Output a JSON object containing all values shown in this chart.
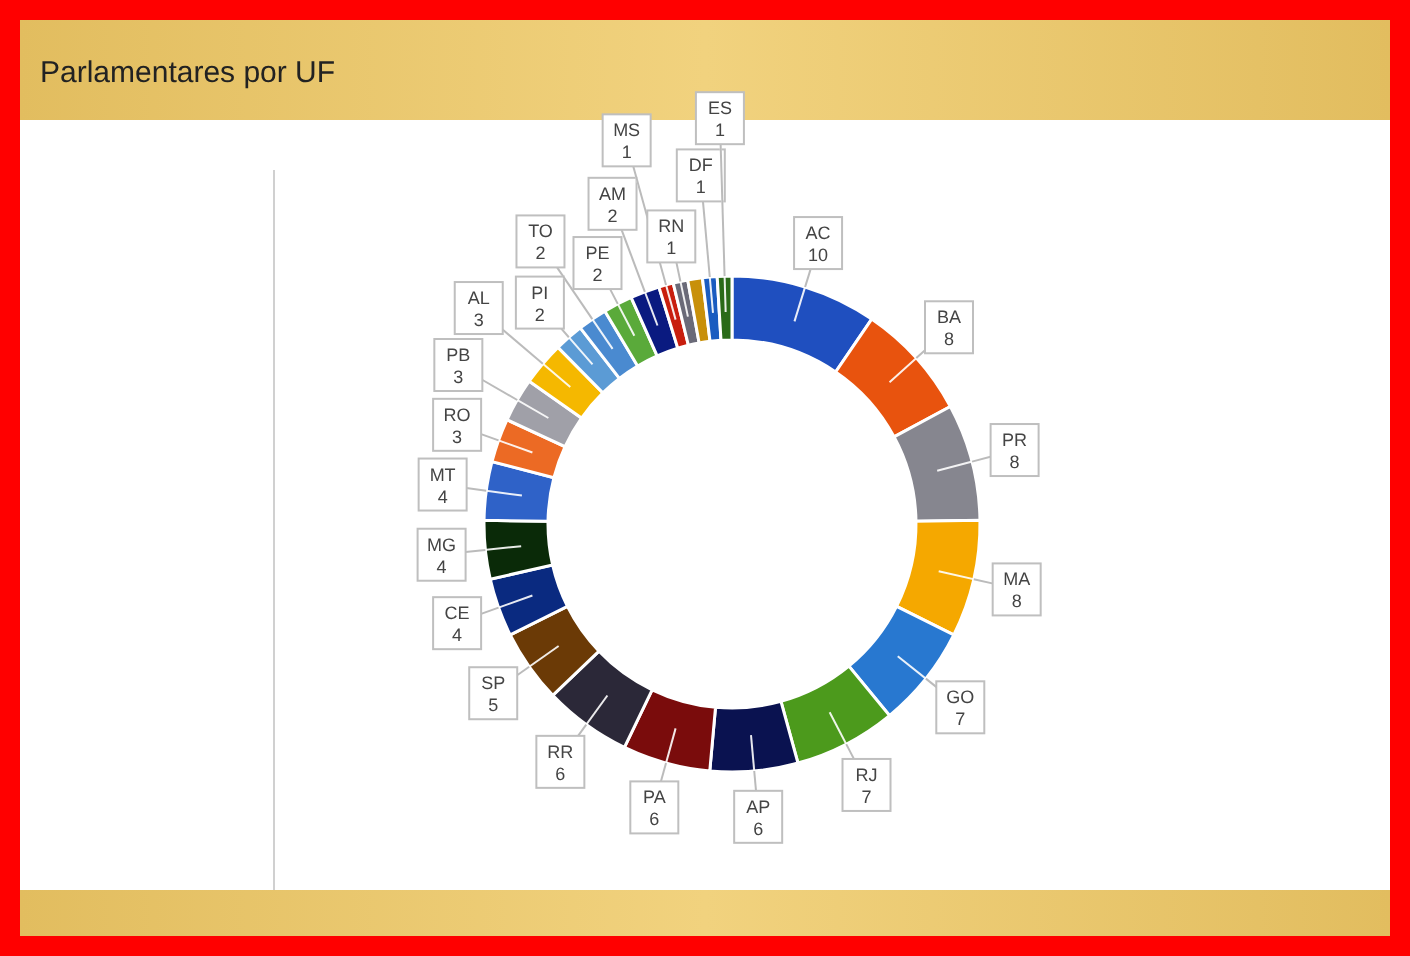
{
  "chart_data": {
    "type": "donut",
    "title": "Parlamentares por UF",
    "categories": [
      "AC",
      "BA",
      "PR",
      "MA",
      "GO",
      "RJ",
      "AP",
      "PA",
      "RR",
      "SP",
      "CE",
      "MG",
      "MT",
      "RO",
      "PB",
      "AL",
      "PI",
      "TO",
      "PE",
      "AM",
      "MS",
      "RN",
      null,
      "DF",
      "ES"
    ],
    "values": [
      10,
      8,
      8,
      8,
      7,
      7,
      6,
      6,
      6,
      5,
      4,
      4,
      4,
      3,
      3,
      3,
      2,
      2,
      2,
      2,
      1,
      1,
      1,
      1,
      1
    ],
    "value_labels": [
      "10",
      "8",
      "8",
      "8",
      "7",
      "7",
      "6",
      "6",
      "6",
      "5",
      "4",
      "4",
      "4",
      "3",
      "3",
      "3",
      "2",
      "2",
      "2",
      "2",
      "1",
      "1",
      null,
      "1",
      "1"
    ],
    "colors": [
      "#1f4fbf",
      "#e8530e",
      "#86868f",
      "#f5a800",
      "#2878d0",
      "#4c9a1c",
      "#0a1250",
      "#7a0c0c",
      "#2b2838",
      "#6b3a06",
      "#0a2a80",
      "#0a2a08",
      "#2f62c8",
      "#ec6a24",
      "#a0a0a8",
      "#f5b800",
      "#5b9bd5",
      "#4a8ad0",
      "#5aaa3a",
      "#0a1a80",
      "#c81e0e",
      "#6a6a78",
      "#c8900a",
      "#1a5cc0",
      "#2a6a18"
    ]
  }
}
